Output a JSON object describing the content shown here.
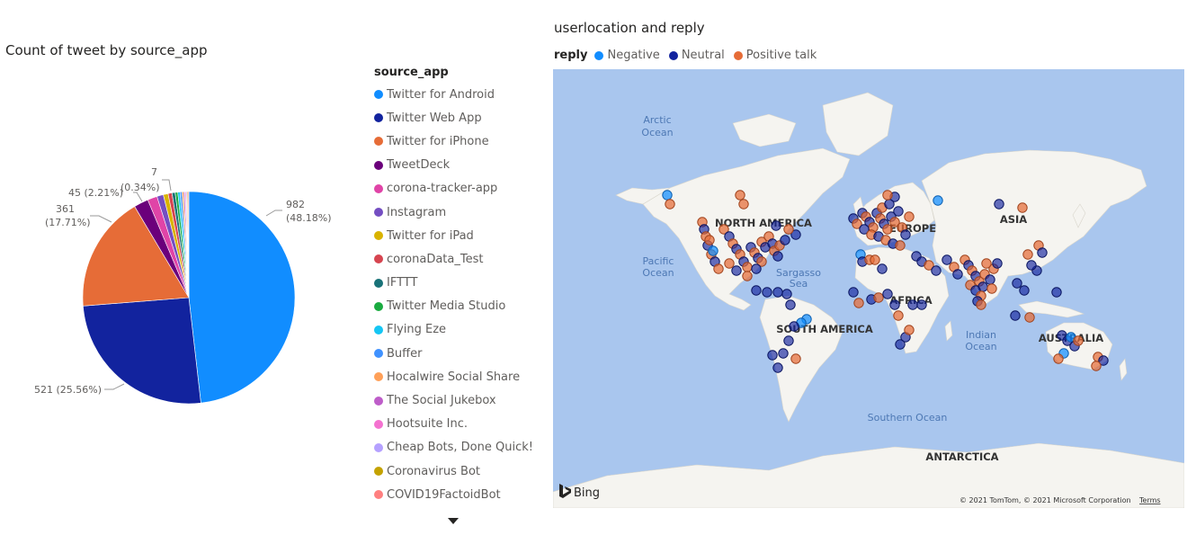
{
  "pie": {
    "title": "Count of tweet by source_app",
    "labels": [
      {
        "line1": "982",
        "line2": "(48.18%)"
      },
      {
        "line1": "521 (25.56%)",
        "line2": ""
      },
      {
        "line1": "361",
        "line2": "(17.71%)"
      },
      {
        "line1": "45 (2.21%)",
        "line2": ""
      },
      {
        "line1": "7",
        "line2": "(0.34%)"
      }
    ]
  },
  "chart_data": {
    "type": "pie",
    "title": "Count of tweet by source_app",
    "legend_title": "source_app",
    "legend_position": "right",
    "slices": [
      {
        "label": "Twitter for Android",
        "value": 982,
        "percent": 48.18,
        "color": "#118DFF"
      },
      {
        "label": "Twitter Web App",
        "value": 521,
        "percent": 25.56,
        "color": "#12239E"
      },
      {
        "label": "Twitter for iPhone",
        "value": 361,
        "percent": 17.71,
        "color": "#E66C37"
      },
      {
        "label": "TweetDeck",
        "value": 45,
        "percent": 2.21,
        "color": "#6B007B"
      },
      {
        "label": "corona-tracker-app",
        "value": 30,
        "percent": 1.47,
        "color": "#E044A7"
      },
      {
        "label": "Instagram",
        "value": 20,
        "percent": 0.98,
        "color": "#744EC2"
      },
      {
        "label": "Twitter for iPad",
        "value": 15,
        "percent": 0.74,
        "color": "#D9B300"
      },
      {
        "label": "coronaData_Test",
        "value": 12,
        "percent": 0.59,
        "color": "#D64550"
      },
      {
        "label": "IFTTT",
        "value": 10,
        "percent": 0.49,
        "color": "#197278"
      },
      {
        "label": "Twitter Media Studio",
        "value": 8,
        "percent": 0.39,
        "color": "#1AAB40"
      },
      {
        "label": "Flying Eze",
        "value": 7,
        "percent": 0.34,
        "color": "#15C6F4"
      },
      {
        "label": "Buffer",
        "value": 6,
        "percent": 0.29,
        "color": "#4092FF"
      },
      {
        "label": "Hocalwire Social Share",
        "value": 5,
        "percent": 0.25,
        "color": "#FFA058"
      },
      {
        "label": "The Social Jukebox",
        "value": 4,
        "percent": 0.2,
        "color": "#BE5DC9"
      },
      {
        "label": "Hootsuite Inc.",
        "value": 3,
        "percent": 0.15,
        "color": "#F472D0"
      },
      {
        "label": "Cheap Bots, Done Quick!",
        "value": 3,
        "percent": 0.15,
        "color": "#B5A1FF"
      },
      {
        "label": "Coronavirus Bot",
        "value": 3,
        "percent": 0.15,
        "color": "#C4A200"
      },
      {
        "label": "COVID19FactoidBot",
        "value": 3,
        "percent": 0.15,
        "color": "#FF8080"
      }
    ]
  },
  "legend": {
    "title": "source_app",
    "items": [
      {
        "label": "Twitter for Android",
        "color": "#118DFF"
      },
      {
        "label": "Twitter Web App",
        "color": "#12239E"
      },
      {
        "label": "Twitter for iPhone",
        "color": "#E66C37"
      },
      {
        "label": "TweetDeck",
        "color": "#6B007B"
      },
      {
        "label": "corona-tracker-app",
        "color": "#E044A7"
      },
      {
        "label": "Instagram",
        "color": "#744EC2"
      },
      {
        "label": "Twitter for iPad",
        "color": "#D9B300"
      },
      {
        "label": "coronaData_Test",
        "color": "#D64550"
      },
      {
        "label": "IFTTT",
        "color": "#197278"
      },
      {
        "label": "Twitter Media Studio",
        "color": "#1AAB40"
      },
      {
        "label": "Flying Eze",
        "color": "#15C6F4"
      },
      {
        "label": "Buffer",
        "color": "#4092FF"
      },
      {
        "label": "Hocalwire Social Share",
        "color": "#FFA058"
      },
      {
        "label": "The Social Jukebox",
        "color": "#BE5DC9"
      },
      {
        "label": "Hootsuite Inc.",
        "color": "#F472D0"
      },
      {
        "label": "Cheap Bots, Done Quick!",
        "color": "#B5A1FF"
      },
      {
        "label": "Coronavirus Bot",
        "color": "#C4A200"
      },
      {
        "label": "COVID19FactoidBot",
        "color": "#FF8080"
      }
    ],
    "more_icon": "chevron-down-icon"
  },
  "map": {
    "title": "userlocation and reply",
    "legend_title": "reply",
    "categories": [
      {
        "label": "Negative",
        "color": "#118DFF"
      },
      {
        "label": "Neutral",
        "color": "#12239E"
      },
      {
        "label": "Positive talk",
        "color": "#E66C37"
      }
    ],
    "oceans": {
      "arctic_1": "Arctic",
      "arctic_2": "Ocean",
      "pacific_1": "Pacific",
      "pacific_2": "Ocean",
      "sargasso_1": "Sargasso",
      "sargasso_2": "Sea",
      "indian_1": "Indian",
      "indian_2": "Ocean",
      "southern": "Southern Ocean"
    },
    "continents": {
      "north_america": "NORTH AMERICA",
      "europe": "EUROPE",
      "asia": "ASIA",
      "africa": "AFRICA",
      "south_america": "SOUTH AMERICA",
      "australia": "AUSTRALIA",
      "antarctica": "ANTARCTICA"
    },
    "bing_label": "Bing",
    "copyright": "© 2021 TomTom, © 2021 Microsoft Corporation",
    "terms": "Terms",
    "colors": {
      "water": "#A9C6EE",
      "land": "#F5F4F0"
    }
  }
}
